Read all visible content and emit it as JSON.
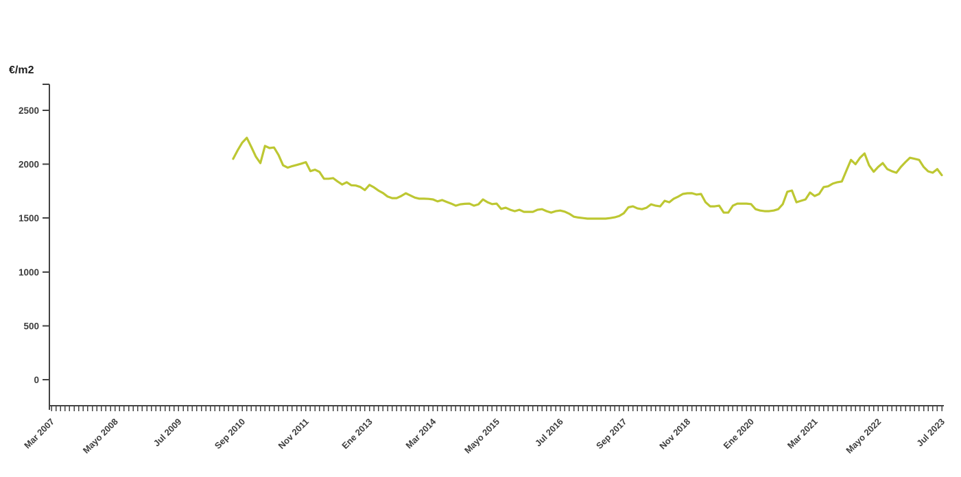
{
  "chart_data": {
    "type": "line",
    "ylabel": "€/m2",
    "line_color": "#bdc732",
    "axis_color": "#414141",
    "label_color": "#3d3d3d",
    "background": "#ffffff",
    "grid": false,
    "legend": "none",
    "y_axis": {
      "ticks": [
        0,
        500,
        1000,
        1500,
        2000,
        2500
      ],
      "ylim": [
        0,
        2700
      ]
    },
    "x_axis": {
      "start": "Mar 2007",
      "end": "Jul 2023",
      "minor_tick": "monthly",
      "label_interval_months": 14,
      "tick_labels": [
        "Mar 2007",
        "Mayo 2008",
        "Jul 2009",
        "Sep 2010",
        "Nov 2011",
        "Ene 2013",
        "Mar 2014",
        "Mayo 2015",
        "Jul 2016",
        "Sep 2017",
        "Nov 2018",
        "Ene 2020",
        "Mar 2021",
        "Mayo 2022",
        "Jul 2023"
      ]
    },
    "data_start": "Jul 2010",
    "x": [
      "Jul 2010",
      "Ago 2010",
      "Sep 2010",
      "Oct 2010",
      "Nov 2010",
      "Dic 2010",
      "Ene 2011",
      "Feb 2011",
      "Mar 2011",
      "Abr 2011",
      "Mayo 2011",
      "Jun 2011",
      "Jul 2011",
      "Ago 2011",
      "Sep 2011",
      "Oct 2011",
      "Nov 2011",
      "Dic 2011",
      "Ene 2012",
      "Feb 2012",
      "Mar 2012",
      "Abr 2012",
      "Mayo 2012",
      "Jun 2012",
      "Jul 2012",
      "Ago 2012",
      "Sep 2012",
      "Oct 2012",
      "Nov 2012",
      "Dic 2012",
      "Ene 2013",
      "Feb 2013",
      "Mar 2013",
      "Abr 2013",
      "Mayo 2013",
      "Jun 2013",
      "Jul 2013",
      "Ago 2013",
      "Sep 2013",
      "Oct 2013",
      "Nov 2013",
      "Dic 2013",
      "Ene 2014",
      "Feb 2014",
      "Mar 2014",
      "Abr 2014",
      "Mayo 2014",
      "Jun 2014",
      "Jul 2014",
      "Ago 2014",
      "Sep 2014",
      "Oct 2014",
      "Nov 2014",
      "Dic 2014",
      "Ene 2015",
      "Feb 2015",
      "Mar 2015",
      "Abr 2015",
      "Mayo 2015",
      "Jun 2015",
      "Jul 2015",
      "Ago 2015",
      "Sep 2015",
      "Oct 2015",
      "Nov 2015",
      "Dic 2015",
      "Ene 2016",
      "Feb 2016",
      "Mar 2016",
      "Abr 2016",
      "Mayo 2016",
      "Jun 2016",
      "Jul 2016",
      "Ago 2016",
      "Sep 2016",
      "Oct 2016",
      "Nov 2016",
      "Dic 2016",
      "Ene 2017",
      "Feb 2017",
      "Mar 2017",
      "Abr 2017",
      "Mayo 2017",
      "Jun 2017",
      "Jul 2017",
      "Ago 2017",
      "Sep 2017",
      "Oct 2017",
      "Nov 2017",
      "Dic 2017",
      "Ene 2018",
      "Feb 2018",
      "Mar 2018",
      "Abr 2018",
      "Mayo 2018",
      "Jun 2018",
      "Jul 2018",
      "Ago 2018",
      "Sep 2018",
      "Oct 2018",
      "Nov 2018",
      "Dic 2018",
      "Ene 2019",
      "Feb 2019",
      "Mar 2019",
      "Abr 2019",
      "Mayo 2019",
      "Jun 2019",
      "Jul 2019",
      "Ago 2019",
      "Sep 2019",
      "Oct 2019",
      "Nov 2019",
      "Dic 2019",
      "Ene 2020",
      "Feb 2020",
      "Mar 2020",
      "Abr 2020",
      "Mayo 2020",
      "Jun 2020",
      "Jul 2020",
      "Ago 2020",
      "Sep 2020",
      "Oct 2020",
      "Nov 2020",
      "Dic 2020",
      "Ene 2021",
      "Feb 2021",
      "Mar 2021",
      "Abr 2021",
      "Mayo 2021",
      "Jun 2021",
      "Jul 2021",
      "Ago 2021",
      "Sep 2021",
      "Oct 2021",
      "Nov 2021",
      "Dic 2021",
      "Ene 2022",
      "Feb 2022",
      "Mar 2022",
      "Abr 2022",
      "Mayo 2022",
      "Jun 2022",
      "Jul 2022",
      "Ago 2022",
      "Sep 2022",
      "Oct 2022",
      "Nov 2022",
      "Dic 2022",
      "Ene 2023",
      "Feb 2023",
      "Mar 2023",
      "Abr 2023",
      "Mayo 2023",
      "Jun 2023",
      "Jul 2023"
    ],
    "values": [
      2050,
      2130,
      2200,
      2245,
      2160,
      2070,
      2010,
      2170,
      2150,
      2155,
      2085,
      1990,
      1968,
      1982,
      1993,
      2005,
      2019,
      1936,
      1949,
      1929,
      1865,
      1865,
      1871,
      1840,
      1812,
      1833,
      1805,
      1802,
      1789,
      1760,
      1808,
      1785,
      1755,
      1732,
      1700,
      1685,
      1685,
      1705,
      1730,
      1710,
      1690,
      1680,
      1680,
      1678,
      1673,
      1655,
      1667,
      1650,
      1634,
      1615,
      1628,
      1632,
      1634,
      1615,
      1628,
      1673,
      1647,
      1630,
      1634,
      1585,
      1596,
      1577,
      1564,
      1577,
      1558,
      1558,
      1558,
      1577,
      1583,
      1564,
      1551,
      1564,
      1570,
      1560,
      1540,
      1513,
      1505,
      1500,
      1495,
      1495,
      1495,
      1495,
      1495,
      1500,
      1507,
      1520,
      1545,
      1600,
      1609,
      1590,
      1583,
      1596,
      1628,
      1615,
      1609,
      1660,
      1647,
      1680,
      1700,
      1724,
      1730,
      1731,
      1718,
      1724,
      1647,
      1609,
      1609,
      1615,
      1551,
      1551,
      1615,
      1634,
      1634,
      1634,
      1630,
      1583,
      1570,
      1564,
      1564,
      1570,
      1583,
      1630,
      1744,
      1756,
      1647,
      1660,
      1673,
      1737,
      1705,
      1724,
      1788,
      1795,
      1820,
      1833,
      1840,
      1940,
      2040,
      2000,
      2060,
      2100,
      1990,
      1930,
      1975,
      2010,
      1955,
      1935,
      1921,
      1975,
      2020,
      2060,
      2050,
      2040,
      1975,
      1934,
      1921,
      1955,
      1898
    ]
  }
}
